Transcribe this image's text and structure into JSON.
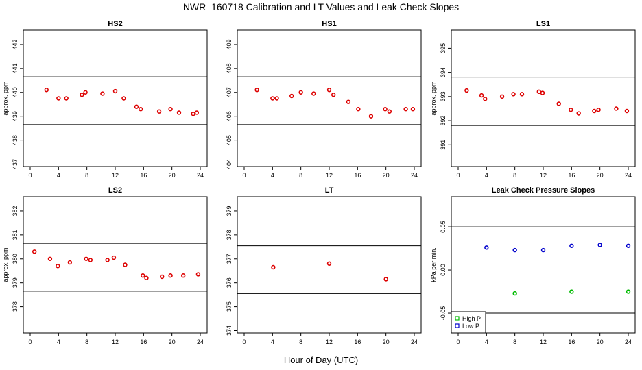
{
  "title": "NWR_160718  Calibration and LT Values and Leak Check Slopes",
  "xlabel": "Hour of Day (UTC)",
  "colors": {
    "points": "#dd0000",
    "high_p": "#00bb00",
    "low_p": "#0000cc",
    "axis": "#000000"
  },
  "chart_data": [
    {
      "type": "scatter",
      "title": "HS2",
      "ylabel": "approx. ppm",
      "xlim": [
        0,
        24
      ],
      "ylim": [
        436.9,
        442.6
      ],
      "xticks": [
        0,
        4,
        8,
        12,
        16,
        20,
        24
      ],
      "yticks": [
        437,
        438,
        439,
        440,
        441,
        442
      ],
      "hlines": [
        440.65,
        438.65
      ],
      "series": [
        {
          "x": [
            2.3,
            4.0,
            5.1,
            7.3,
            7.8,
            10.2,
            12.0,
            13.2,
            15.0,
            15.6,
            18.2,
            19.8,
            21.0,
            23.0,
            23.5
          ],
          "y": [
            440.1,
            439.75,
            439.75,
            439.9,
            440.0,
            439.95,
            440.05,
            439.75,
            439.4,
            439.3,
            439.2,
            439.3,
            439.15,
            439.1,
            439.15
          ]
        }
      ]
    },
    {
      "type": "scatter",
      "title": "HS1",
      "ylabel": "",
      "xlim": [
        0,
        24
      ],
      "ylim": [
        403.9,
        409.6
      ],
      "xticks": [
        0,
        4,
        8,
        12,
        16,
        20,
        24
      ],
      "yticks": [
        404,
        405,
        406,
        407,
        408,
        409
      ],
      "hlines": [
        407.65,
        405.65
      ],
      "series": [
        {
          "x": [
            1.8,
            4.0,
            4.6,
            6.7,
            8.0,
            9.8,
            12.0,
            12.6,
            14.7,
            16.1,
            17.9,
            19.9,
            20.5,
            22.8,
            23.8
          ],
          "y": [
            407.1,
            406.75,
            406.75,
            406.85,
            407.0,
            406.95,
            407.1,
            406.9,
            406.6,
            406.3,
            406.0,
            406.3,
            406.2,
            406.3,
            406.3
          ]
        }
      ]
    },
    {
      "type": "scatter",
      "title": "LS1",
      "ylabel": "approx. ppm",
      "xlim": [
        0,
        24
      ],
      "ylim": [
        390.1,
        395.75
      ],
      "xticks": [
        0,
        4,
        8,
        12,
        16,
        20,
        24
      ],
      "yticks": [
        391,
        392,
        393,
        394,
        395
      ],
      "hlines": [
        393.8,
        391.8
      ],
      "series": [
        {
          "x": [
            1.2,
            3.3,
            3.8,
            6.2,
            7.8,
            9.0,
            11.4,
            11.9,
            14.2,
            15.9,
            17.0,
            19.2,
            19.8,
            22.3,
            23.8
          ],
          "y": [
            393.25,
            393.05,
            392.9,
            393.0,
            393.1,
            393.1,
            393.2,
            393.15,
            392.7,
            392.45,
            392.3,
            392.4,
            392.45,
            392.5,
            392.4
          ]
        }
      ]
    },
    {
      "type": "scatter",
      "title": "LS2",
      "ylabel": "approx. ppm",
      "xlim": [
        0,
        24
      ],
      "ylim": [
        376.9,
        382.6
      ],
      "xticks": [
        0,
        4,
        8,
        12,
        16,
        20,
        24
      ],
      "yticks": [
        378,
        379,
        380,
        381,
        382
      ],
      "hlines": [
        380.65,
        378.65
      ],
      "series": [
        {
          "x": [
            0.6,
            2.8,
            3.9,
            5.6,
            7.9,
            8.5,
            10.9,
            11.8,
            13.4,
            15.9,
            16.4,
            18.6,
            19.8,
            21.6,
            23.7
          ],
          "y": [
            380.3,
            380.0,
            379.7,
            379.85,
            380.0,
            379.95,
            379.95,
            380.05,
            379.75,
            379.3,
            379.2,
            379.25,
            379.3,
            379.3,
            379.35
          ]
        }
      ]
    },
    {
      "type": "scatter",
      "title": "LT",
      "ylabel": "",
      "xlim": [
        0,
        24
      ],
      "ylim": [
        373.9,
        379.6
      ],
      "xticks": [
        0,
        4,
        8,
        12,
        16,
        20,
        24
      ],
      "yticks": [
        374,
        375,
        376,
        377,
        378,
        379
      ],
      "hlines": [
        377.55,
        375.55
      ],
      "series": [
        {
          "x": [
            4.1,
            12.0,
            20.0
          ],
          "y": [
            376.65,
            376.8,
            376.15
          ]
        }
      ]
    },
    {
      "type": "scatter",
      "title": "Leak Check Pressure Slopes",
      "ylabel": "kPa per min.",
      "xlim": [
        0,
        24
      ],
      "ylim": [
        -0.073,
        0.085
      ],
      "xticks": [
        0,
        4,
        8,
        12,
        16,
        20,
        24
      ],
      "yticks": [
        -0.05,
        0.0,
        0.05
      ],
      "ytick_labels": [
        "-0.05",
        "0.00",
        "0.05"
      ],
      "hlines": [
        0.05,
        -0.05
      ],
      "legend": {
        "position": "bottom-left",
        "entries": [
          "High P",
          "Low P"
        ]
      },
      "series": [
        {
          "name": "High P",
          "x": [
            8.0,
            16.0,
            24.0
          ],
          "y": [
            -0.027,
            -0.025,
            -0.025
          ]
        },
        {
          "name": "Low P",
          "x": [
            4.0,
            8.0,
            12.0,
            16.0,
            20.0,
            24.0
          ],
          "y": [
            0.026,
            0.023,
            0.023,
            0.028,
            0.029,
            0.028
          ]
        }
      ]
    }
  ]
}
